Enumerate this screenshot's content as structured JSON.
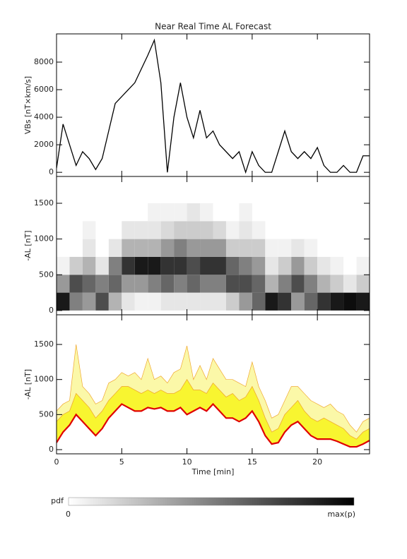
{
  "chart_data": [
    {
      "type": "line",
      "title": "Near Real Time AL Forecast",
      "ylabel": "VBs [nT×km/s]",
      "color": "#000000",
      "x": [
        0,
        0.5,
        1,
        1.5,
        2,
        2.5,
        3,
        3.5,
        4,
        4.5,
        5,
        5.5,
        6,
        6.5,
        7,
        7.5,
        8,
        8.5,
        9,
        9.5,
        10,
        10.5,
        11,
        11.5,
        12,
        12.5,
        13,
        13.5,
        14,
        14.5,
        15,
        15.5,
        16,
        16.5,
        17,
        17.5,
        18,
        18.5,
        19,
        19.5,
        20,
        20.5,
        21,
        21.5,
        22,
        22.5,
        23,
        23.5,
        24
      ],
      "values": [
        300,
        3500,
        2000,
        500,
        1500,
        1000,
        200,
        1000,
        3000,
        5000,
        5500,
        6000,
        6500,
        7500,
        8500,
        9600,
        6500,
        0,
        4000,
        6500,
        4000,
        2500,
        4500,
        2500,
        3000,
        2000,
        1500,
        1000,
        1500,
        0,
        1500,
        500,
        0,
        0,
        1500,
        3000,
        1500,
        1000,
        1500,
        1000,
        1800,
        500,
        0,
        0,
        500,
        0,
        0,
        1200,
        1200
      ],
      "xlim": [
        0,
        24
      ],
      "xticks": [
        0,
        5,
        10,
        15,
        20
      ],
      "ylim": [
        -300,
        10050
      ],
      "yticks": [
        0,
        2000,
        4000,
        6000,
        8000
      ]
    },
    {
      "type": "heatmap",
      "ylabel": "-AL [nT]",
      "x_bins": [
        0,
        1,
        2,
        3,
        4,
        5,
        6,
        7,
        8,
        9,
        10,
        11,
        12,
        13,
        14,
        15,
        16,
        17,
        18,
        19,
        20,
        21,
        22,
        23,
        24
      ],
      "y_bins": [
        0,
        250,
        500,
        750,
        1000,
        1250,
        1500
      ],
      "pdf": [
        [
          90,
          40,
          5,
          0,
          0,
          0
        ],
        [
          50,
          70,
          20,
          0,
          0,
          0
        ],
        [
          40,
          60,
          30,
          10,
          5,
          0
        ],
        [
          70,
          50,
          10,
          0,
          0,
          0
        ],
        [
          30,
          60,
          50,
          10,
          0,
          0
        ],
        [
          10,
          40,
          80,
          30,
          10,
          0
        ],
        [
          5,
          40,
          90,
          30,
          10,
          0
        ],
        [
          5,
          50,
          90,
          30,
          10,
          5
        ],
        [
          10,
          60,
          80,
          40,
          15,
          5
        ],
        [
          10,
          50,
          80,
          50,
          20,
          5
        ],
        [
          10,
          60,
          70,
          40,
          20,
          10
        ],
        [
          10,
          50,
          80,
          40,
          20,
          5
        ],
        [
          10,
          50,
          80,
          40,
          15,
          0
        ],
        [
          20,
          70,
          60,
          20,
          5,
          0
        ],
        [
          40,
          70,
          50,
          20,
          10,
          5
        ],
        [
          60,
          60,
          40,
          20,
          5,
          0
        ],
        [
          90,
          30,
          10,
          5,
          0,
          0
        ],
        [
          80,
          50,
          20,
          5,
          0,
          0
        ],
        [
          40,
          70,
          40,
          10,
          0,
          0
        ],
        [
          60,
          50,
          20,
          5,
          0,
          0
        ],
        [
          80,
          30,
          10,
          0,
          0,
          0
        ],
        [
          90,
          20,
          5,
          0,
          0,
          0
        ],
        [
          95,
          10,
          0,
          0,
          0,
          0
        ],
        [
          90,
          20,
          5,
          0,
          0,
          0
        ]
      ],
      "zlim": [
        0,
        100
      ],
      "colorbar": {
        "label": "pdf",
        "min_label": "0",
        "max_label": "max(p)"
      },
      "xlim": [
        0,
        24
      ],
      "xticks": [
        0,
        5,
        10,
        15,
        20
      ],
      "ylim": [
        -60,
        1875
      ],
      "yticks": [
        0,
        500,
        1000,
        1500
      ]
    },
    {
      "type": "band",
      "ylabel": "-AL [nT]",
      "xlabel": "Time [min]",
      "edge_color": "#f0a830",
      "x": [
        0,
        0.5,
        1,
        1.5,
        2,
        2.5,
        3,
        3.5,
        4,
        4.5,
        5,
        5.5,
        6,
        6.5,
        7,
        7.5,
        8,
        8.5,
        9,
        9.5,
        10,
        10.5,
        11,
        11.5,
        12,
        12.5,
        13,
        13.5,
        14,
        14.5,
        15,
        15.5,
        16,
        16.5,
        17,
        17.5,
        18,
        18.5,
        19,
        19.5,
        20,
        20.5,
        21,
        21.5,
        22,
        22.5,
        23,
        23.5,
        24
      ],
      "series": [
        {
          "color": "#e00000",
          "values": [
            100,
            250,
            350,
            500,
            400,
            300,
            200,
            300,
            450,
            550,
            650,
            600,
            550,
            550,
            600,
            580,
            600,
            550,
            550,
            600,
            500,
            550,
            600,
            550,
            650,
            550,
            450,
            450,
            400,
            450,
            550,
            400,
            200,
            80,
            100,
            250,
            350,
            400,
            300,
            200,
            150,
            150,
            150,
            120,
            80,
            40,
            40,
            80,
            130
          ]
        },
        {
          "color": "#f8f530",
          "values": [
            400,
            500,
            550,
            800,
            700,
            600,
            450,
            550,
            700,
            800,
            900,
            900,
            850,
            800,
            850,
            800,
            850,
            800,
            800,
            850,
            1000,
            850,
            850,
            800,
            950,
            850,
            750,
            800,
            700,
            750,
            900,
            700,
            450,
            250,
            300,
            500,
            600,
            700,
            550,
            450,
            400,
            450,
            400,
            350,
            300,
            200,
            150,
            250,
            300
          ]
        },
        {
          "color": "#fbf8a8",
          "values": [
            550,
            650,
            700,
            1500,
            900,
            800,
            650,
            700,
            950,
            1000,
            1100,
            1050,
            1100,
            1000,
            1300,
            1000,
            1050,
            950,
            1100,
            1150,
            1480,
            1000,
            1200,
            1000,
            1300,
            1150,
            1000,
            1000,
            950,
            900,
            1250,
            900,
            700,
            450,
            500,
            700,
            900,
            900,
            800,
            700,
            650,
            600,
            650,
            550,
            500,
            350,
            250,
            400,
            450
          ]
        }
      ],
      "xlim": [
        0,
        24
      ],
      "xticks": [
        0,
        5,
        10,
        15,
        20
      ],
      "ylim": [
        -60,
        1923
      ],
      "yticks": [
        0,
        500,
        1000,
        1500
      ]
    }
  ]
}
